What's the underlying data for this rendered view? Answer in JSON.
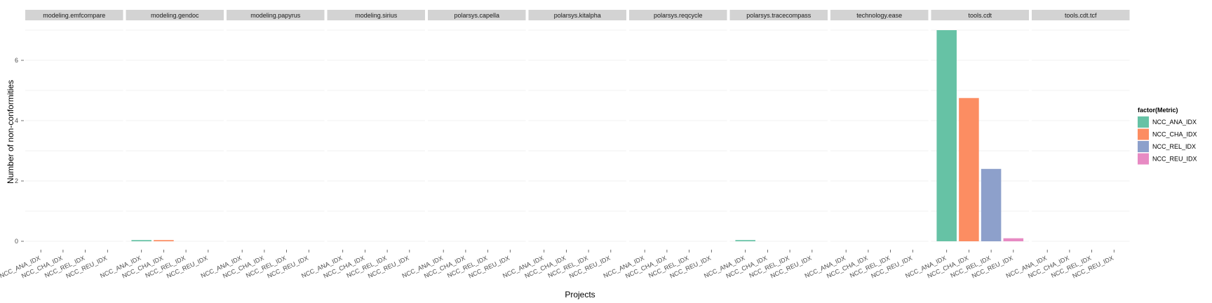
{
  "chart_data": {
    "type": "bar",
    "xlabel": "Projects",
    "ylabel": "Number of non-conformities",
    "ylim": [
      0,
      7
    ],
    "y_ticks": [
      0,
      2,
      4,
      6
    ],
    "categories": [
      "NCC_ANA_IDX",
      "NCC_CHA_IDX",
      "NCC_REL_IDX",
      "NCC_REU_IDX"
    ],
    "legend": {
      "title": "factor(Metric)",
      "placement": "right",
      "items": [
        {
          "name": "NCC_ANA_IDX",
          "color": "#66c2a5"
        },
        {
          "name": "NCC_CHA_IDX",
          "color": "#fc8d62"
        },
        {
          "name": "NCC_REL_IDX",
          "color": "#8da0cb"
        },
        {
          "name": "NCC_REU_IDX",
          "color": "#e78ac3"
        }
      ]
    },
    "grid": true,
    "facets": [
      {
        "name": "modeling.emfcompare",
        "values": [
          0,
          0,
          0,
          0
        ]
      },
      {
        "name": "modeling.gendoc",
        "values": [
          0.04,
          0.04,
          0,
          0
        ]
      },
      {
        "name": "modeling.papyrus",
        "values": [
          0,
          0,
          0,
          0
        ]
      },
      {
        "name": "modeling.sirius",
        "values": [
          0,
          0,
          0,
          0
        ]
      },
      {
        "name": "polarsys.capella",
        "values": [
          0,
          0,
          0,
          0
        ]
      },
      {
        "name": "polarsys.kitalpha",
        "values": [
          0,
          0,
          0,
          0
        ]
      },
      {
        "name": "polarsys.reqcycle",
        "values": [
          0,
          0,
          0,
          0
        ]
      },
      {
        "name": "polarsys.tracecompass",
        "values": [
          0.04,
          0,
          0,
          0
        ]
      },
      {
        "name": "technology.ease",
        "values": [
          0,
          0,
          0,
          0
        ]
      },
      {
        "name": "tools.cdt",
        "values": [
          7,
          4.75,
          2.4,
          0.1
        ]
      },
      {
        "name": "tools.cdt.tcf",
        "values": [
          0,
          0,
          0,
          0
        ]
      }
    ]
  }
}
